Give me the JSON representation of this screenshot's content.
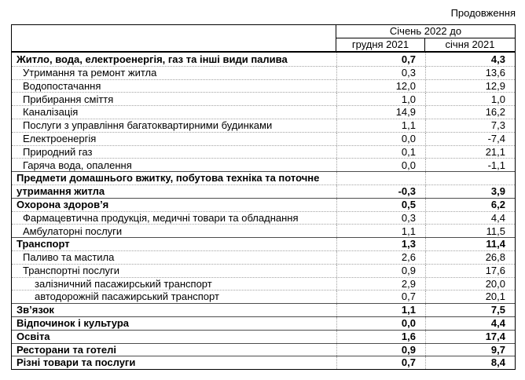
{
  "page": {
    "continuation_label": "Продовження"
  },
  "table": {
    "header": {
      "span_label": "Січень 2022 до",
      "col_dec": "грудня 2021",
      "col_jan": "січня 2021"
    },
    "rows": [
      {
        "label": "Житло, вода, електроенергія, газ та інші види палива",
        "dec": "0,7",
        "jan": "4,3",
        "style": "section"
      },
      {
        "label": "Утримання та ремонт житла",
        "dec": "0,3",
        "jan": "13,6",
        "style": "sub"
      },
      {
        "label": "Водопостачання",
        "dec": "12,0",
        "jan": "12,9",
        "style": "sub"
      },
      {
        "label": "Прибирання сміття",
        "dec": "1,0",
        "jan": "1,0",
        "style": "sub"
      },
      {
        "label": "Каналізація",
        "dec": "14,9",
        "jan": "16,2",
        "style": "sub"
      },
      {
        "label": "Послуги з управління багатоквартирними будинками",
        "dec": "1,1",
        "jan": "7,3",
        "style": "sub"
      },
      {
        "label": "Електроенергія",
        "dec": "0,0",
        "jan": "-7,4",
        "style": "sub"
      },
      {
        "label": "Природний газ",
        "dec": "0,1",
        "jan": "21,1",
        "style": "sub"
      },
      {
        "label": "Гаряча вода, опалення",
        "dec": "0,0",
        "jan": "-1,1",
        "style": "sub"
      },
      {
        "label": "Предмети домашнього вжитку, побутова техніка та поточне",
        "dec": "",
        "jan": "",
        "style": "section"
      },
      {
        "label": "утримання житла",
        "dec": "-0,3",
        "jan": "3,9",
        "style": "section-cont"
      },
      {
        "label": "Охорона здоров’я",
        "dec": "0,5",
        "jan": "6,2",
        "style": "section"
      },
      {
        "label": "Фармацевтична продукція, медичні товари та обладнання",
        "dec": "0,3",
        "jan": "4,4",
        "style": "sub"
      },
      {
        "label": "Амбулаторні послуги",
        "dec": "1,1",
        "jan": "11,5",
        "style": "sub"
      },
      {
        "label": "Транспорт",
        "dec": "1,3",
        "jan": "11,4",
        "style": "section"
      },
      {
        "label": "Паливо та мастила",
        "dec": "2,6",
        "jan": "26,8",
        "style": "sub"
      },
      {
        "label": "Транспортні послуги",
        "dec": "0,9",
        "jan": "17,6",
        "style": "sub"
      },
      {
        "label": "залізничний пасажирський транспорт",
        "dec": "2,9",
        "jan": "20,0",
        "style": "sub2"
      },
      {
        "label": "автодорожній пасажирський транспорт",
        "dec": "0,7",
        "jan": "20,1",
        "style": "sub2"
      },
      {
        "label": "Зв’язок",
        "dec": "1,1",
        "jan": "7,5",
        "style": "section"
      },
      {
        "label": "Відпочинок і культура",
        "dec": "0,0",
        "jan": "4,4",
        "style": "section"
      },
      {
        "label": "Освіта",
        "dec": "1,6",
        "jan": "17,4",
        "style": "section"
      },
      {
        "label": "Ресторани та готелі",
        "dec": "0,9",
        "jan": "9,7",
        "style": "section"
      },
      {
        "label": "Різні товари та послуги",
        "dec": "0,7",
        "jan": "8,4",
        "style": "section"
      }
    ]
  },
  "chart_data": {
    "type": "table",
    "title": "Продовження",
    "column_group": "Січень 2022 до",
    "columns": [
      "грудня 2021",
      "січня 2021"
    ],
    "rows": [
      {
        "label": "Житло, вода, електроенергія, газ та інші види палива",
        "values": [
          0.7,
          4.3
        ],
        "level": 0,
        "bold": true
      },
      {
        "label": "Утримання та ремонт житла",
        "values": [
          0.3,
          13.6
        ],
        "level": 1,
        "bold": false
      },
      {
        "label": "Водопостачання",
        "values": [
          12.0,
          12.9
        ],
        "level": 1,
        "bold": false
      },
      {
        "label": "Прибирання сміття",
        "values": [
          1.0,
          1.0
        ],
        "level": 1,
        "bold": false
      },
      {
        "label": "Каналізація",
        "values": [
          14.9,
          16.2
        ],
        "level": 1,
        "bold": false
      },
      {
        "label": "Послуги з управління багатоквартирними будинками",
        "values": [
          1.1,
          7.3
        ],
        "level": 1,
        "bold": false
      },
      {
        "label": "Електроенергія",
        "values": [
          0.0,
          -7.4
        ],
        "level": 1,
        "bold": false
      },
      {
        "label": "Природний газ",
        "values": [
          0.1,
          21.1
        ],
        "level": 1,
        "bold": false
      },
      {
        "label": "Гаряча вода, опалення",
        "values": [
          0.0,
          -1.1
        ],
        "level": 1,
        "bold": false
      },
      {
        "label": "Предмети домашнього вжитку, побутова техніка та поточне утримання житла",
        "values": [
          -0.3,
          3.9
        ],
        "level": 0,
        "bold": true
      },
      {
        "label": "Охорона здоров’я",
        "values": [
          0.5,
          6.2
        ],
        "level": 0,
        "bold": true
      },
      {
        "label": "Фармацевтична продукція, медичні товари та обладнання",
        "values": [
          0.3,
          4.4
        ],
        "level": 1,
        "bold": false
      },
      {
        "label": "Амбулаторні послуги",
        "values": [
          1.1,
          11.5
        ],
        "level": 1,
        "bold": false
      },
      {
        "label": "Транспорт",
        "values": [
          1.3,
          11.4
        ],
        "level": 0,
        "bold": true
      },
      {
        "label": "Паливо та мастила",
        "values": [
          2.6,
          26.8
        ],
        "level": 1,
        "bold": false
      },
      {
        "label": "Транспортні послуги",
        "values": [
          0.9,
          17.6
        ],
        "level": 1,
        "bold": false
      },
      {
        "label": "залізничний пасажирський транспорт",
        "values": [
          2.9,
          20.0
        ],
        "level": 2,
        "bold": false
      },
      {
        "label": "автодорожній пасажирський транспорт",
        "values": [
          0.7,
          20.1
        ],
        "level": 2,
        "bold": false
      },
      {
        "label": "Зв’язок",
        "values": [
          1.1,
          7.5
        ],
        "level": 0,
        "bold": true
      },
      {
        "label": "Відпочинок і культура",
        "values": [
          0.0,
          4.4
        ],
        "level": 0,
        "bold": true
      },
      {
        "label": "Освіта",
        "values": [
          1.6,
          17.4
        ],
        "level": 0,
        "bold": true
      },
      {
        "label": "Ресторани та готелі",
        "values": [
          0.9,
          9.7
        ],
        "level": 0,
        "bold": true
      },
      {
        "label": "Різні товари та послуги",
        "values": [
          0.7,
          8.4
        ],
        "level": 0,
        "bold": true
      }
    ]
  }
}
